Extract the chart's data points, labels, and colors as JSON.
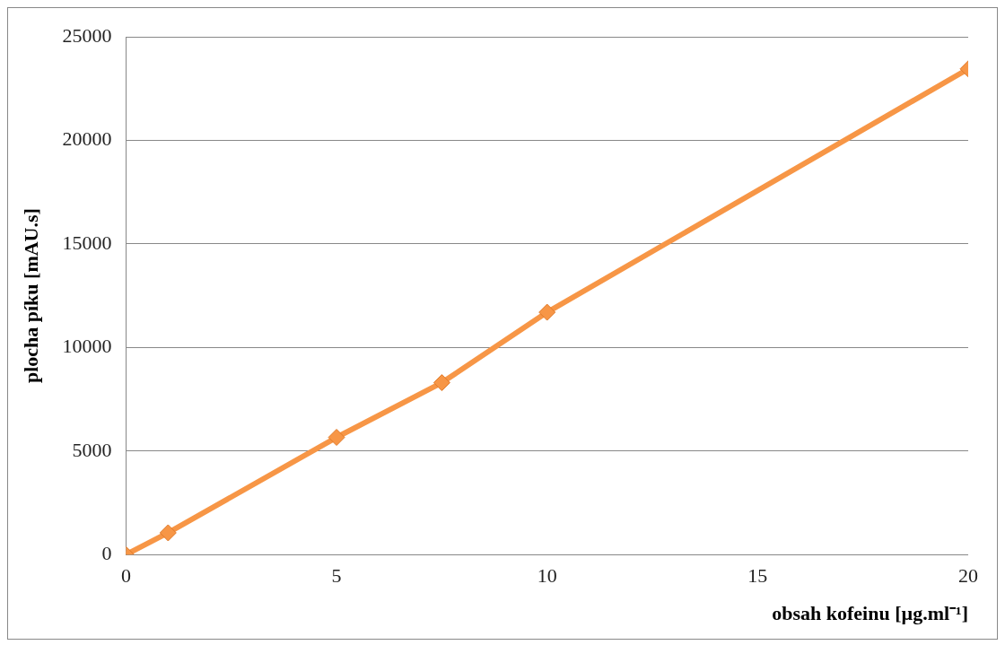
{
  "chart_data": {
    "type": "line",
    "xlabel": "obsah kofeinu [µg.ml⁻¹]",
    "ylabel": "plocha píku [mAU.s]",
    "x": [
      0,
      1,
      5,
      7.5,
      10,
      20
    ],
    "series": [
      {
        "color": "#f79646",
        "values": [
          0,
          1050,
          5660,
          8300,
          11700,
          23450
        ]
      }
    ],
    "xlim": [
      0,
      20
    ],
    "xticks": [
      0,
      5,
      10,
      15,
      20
    ],
    "ylim": [
      0,
      25000
    ],
    "yticks": [
      0,
      5000,
      10000,
      15000,
      20000,
      25000
    ],
    "grid": "y",
    "legend": false,
    "marker": "diamond",
    "line_style": "solid"
  }
}
